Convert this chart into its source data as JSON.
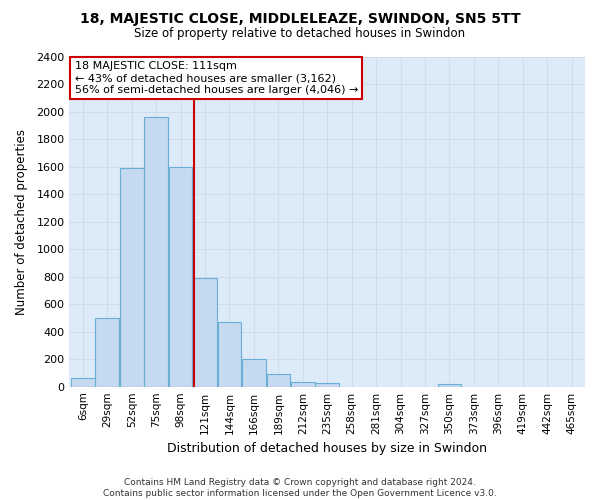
{
  "title": "18, MAJESTIC CLOSE, MIDDLELEAZE, SWINDON, SN5 5TT",
  "subtitle": "Size of property relative to detached houses in Swindon",
  "xlabel": "Distribution of detached houses by size in Swindon",
  "ylabel": "Number of detached properties",
  "footer1": "Contains HM Land Registry data © Crown copyright and database right 2024.",
  "footer2": "Contains public sector information licensed under the Open Government Licence v3.0.",
  "categories": [
    "6sqm",
    "29sqm",
    "52sqm",
    "75sqm",
    "98sqm",
    "121sqm",
    "144sqm",
    "166sqm",
    "189sqm",
    "212sqm",
    "235sqm",
    "258sqm",
    "281sqm",
    "304sqm",
    "327sqm",
    "350sqm",
    "373sqm",
    "396sqm",
    "419sqm",
    "442sqm",
    "465sqm"
  ],
  "bar_values": [
    60,
    500,
    1590,
    1960,
    1600,
    790,
    470,
    200,
    90,
    35,
    28,
    0,
    0,
    0,
    0,
    22,
    0,
    0,
    0,
    0,
    0
  ],
  "bar_color": "#c5d9f0",
  "bar_edgecolor": "#6aaed6",
  "vline_x": 4.55,
  "vline_color": "#cc0000",
  "ylim": [
    0,
    2400
  ],
  "yticks": [
    0,
    200,
    400,
    600,
    800,
    1000,
    1200,
    1400,
    1600,
    1800,
    2000,
    2200,
    2400
  ],
  "annotation_title": "18 MAJESTIC CLOSE: 111sqm",
  "annotation_line1": "← 43% of detached houses are smaller (3,162)",
  "annotation_line2": "56% of semi-detached houses are larger (4,046) →",
  "annotation_box_color": "white",
  "annotation_box_edgecolor": "#cc0000",
  "grid_color": "#d0dcea",
  "plot_bg_color": "#ddeaf7"
}
